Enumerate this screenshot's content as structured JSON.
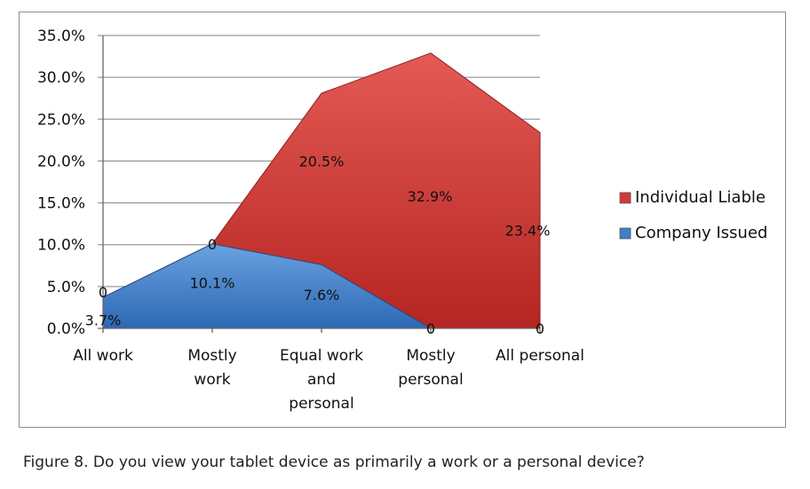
{
  "caption": "Figure 8. Do you view your tablet device as primarily a work or a personal device?",
  "chart_data": {
    "type": "area",
    "categories": [
      [
        "All work"
      ],
      [
        "Mostly",
        "work"
      ],
      [
        "Equal work",
        "and",
        "personal"
      ],
      [
        "Mostly",
        "personal"
      ],
      [
        "All personal"
      ]
    ],
    "ylim": [
      0,
      35
    ],
    "yticks": [
      "0.0%",
      "5.0%",
      "10.0%",
      "15.0%",
      "20.0%",
      "25.0%",
      "30.0%",
      "35.0%"
    ],
    "grid": true,
    "legend_position": "right",
    "series": [
      {
        "name": "Individual Liable",
        "color": "#d23a36",
        "values": [
          0,
          0,
          20.5,
          32.9,
          23.4
        ],
        "labels": [
          "0",
          "0",
          "20.5%",
          "32.9%",
          "23.4%"
        ]
      },
      {
        "name": "Company Issued",
        "color": "#3f7fc9",
        "values": [
          3.7,
          10.1,
          7.6,
          0,
          0
        ],
        "labels": [
          "3.7%",
          "10.1%",
          "7.6%",
          "0",
          "0"
        ]
      }
    ]
  }
}
